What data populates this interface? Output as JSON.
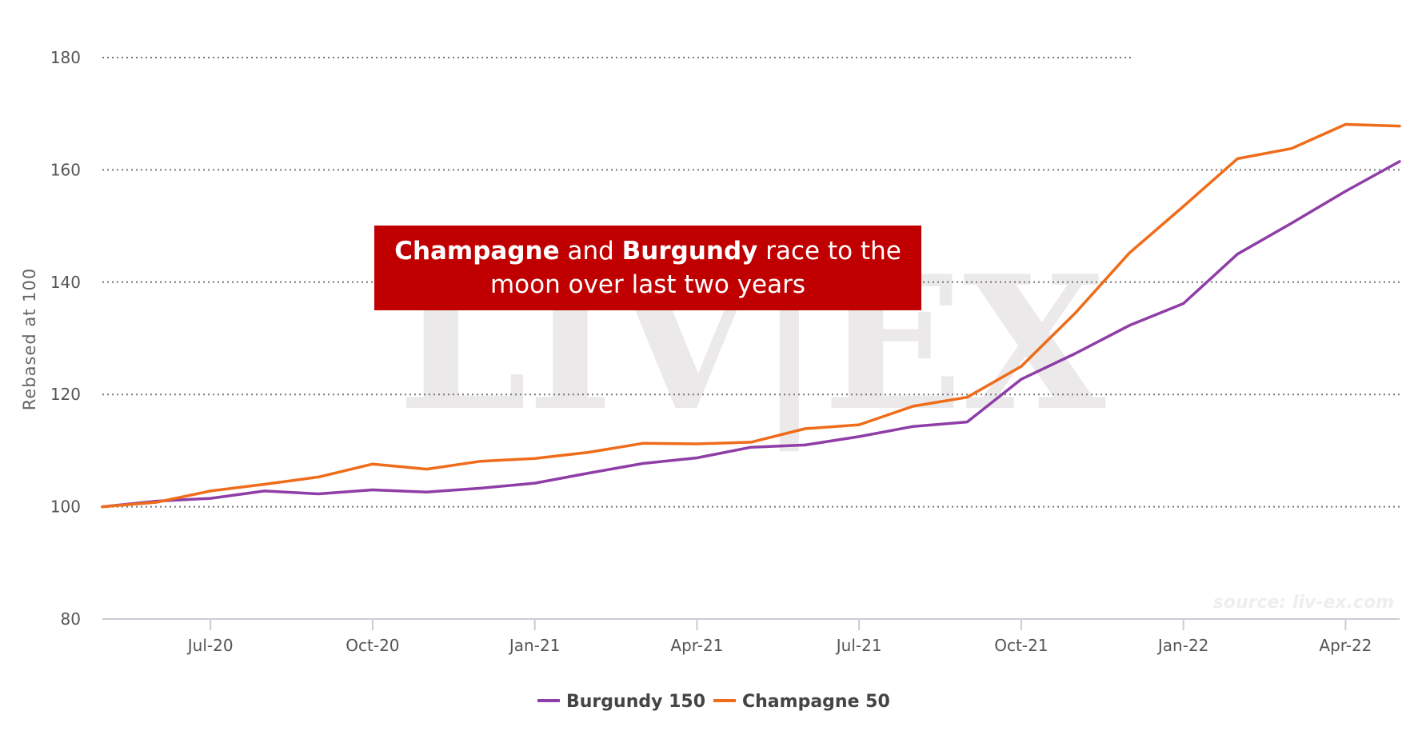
{
  "chart_data": {
    "type": "line",
    "title_parts": [
      {
        "text": "Champagne",
        "bold": true
      },
      {
        "text": " and ",
        "bold": false
      },
      {
        "text": "Burgundy",
        "bold": true
      },
      {
        "text": " race to the",
        "bold": false
      }
    ],
    "title_line2": "moon over last two years",
    "ylabel": "Rebased at 100",
    "ylim": [
      80,
      180
    ],
    "yticks": [
      80,
      100,
      120,
      140,
      160,
      180
    ],
    "xticks": [
      "Jul-20",
      "Oct-20",
      "Jan-21",
      "Apr-21",
      "Jul-21",
      "Oct-21",
      "Jan-22",
      "Apr-22"
    ],
    "x": [
      "May-20",
      "Jun-20",
      "Jul-20",
      "Aug-20",
      "Sep-20",
      "Oct-20",
      "Nov-20",
      "Dec-20",
      "Jan-21",
      "Feb-21",
      "Mar-21",
      "Apr-21",
      "May-21",
      "Jun-21",
      "Jul-21",
      "Aug-21",
      "Sep-21",
      "Oct-21",
      "Nov-21",
      "Dec-21",
      "Jan-22",
      "Feb-22",
      "Mar-22",
      "Apr-22",
      "May-22"
    ],
    "series": [
      {
        "name": "Burgundy 150",
        "color": "#8e3ea6",
        "values": [
          100,
          101,
          101.5,
          102.8,
          102.3,
          103,
          102.6,
          103.3,
          104.2,
          106,
          107.7,
          108.7,
          110.6,
          111,
          112.5,
          114.3,
          115.1,
          122.7,
          127.3,
          132.3,
          136.2,
          145,
          150.5,
          156.2,
          161.5
        ]
      },
      {
        "name": "Champagne 50",
        "color": "#ee6c1a",
        "values": [
          100,
          100.8,
          102.8,
          104,
          105.3,
          107.6,
          106.7,
          108.1,
          108.6,
          109.7,
          111.3,
          111.2,
          111.5,
          113.9,
          114.6,
          117.9,
          119.5,
          125,
          134.5,
          145.2,
          153.5,
          162,
          163.8,
          168.1,
          167.8
        ]
      }
    ],
    "grid": true,
    "legend": "bottom-center",
    "watermark": "LIV|EX",
    "source": "source: liv-ex.com"
  }
}
